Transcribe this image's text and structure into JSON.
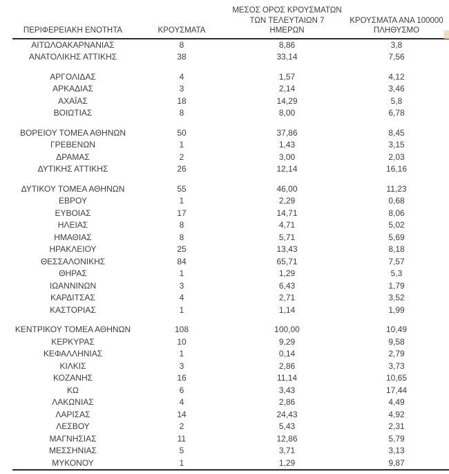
{
  "table": {
    "columns": [
      "ΠΕΡΙΦΕΡΕΙΑΚΗ ΕΝΟΤΗΤΑ",
      "ΚΡΟΥΣΜΑΤΑ",
      "ΜΕΣΟΣ ΟΡΟΣ ΚΡΟΥΣΜΑΤΩΝ\nΤΩΝ ΤΕΛΕΥΤΑΙΩΝ 7\nΗΜΕΡΩΝ",
      "ΚΡΟΥΣΜΑΤΑ ΑΝΑ 100000\nΠΛΗΘΥΣΜΟ"
    ]
  },
  "chart_data": {
    "type": "table",
    "columns": [
      "ΠΕΡΙΦΕΡΕΙΑΚΗ ΕΝΟΤΗΤΑ",
      "ΚΡΟΥΣΜΑΤΑ",
      "ΜΕΣΟΣ ΟΡΟΣ ΚΡΟΥΣΜΑΤΩΝ ΤΩΝ ΤΕΛΕΥΤΑΙΩΝ 7 ΗΜΕΡΩΝ",
      "ΚΡΟΥΣΜΑΤΑ ΑΝΑ 100000 ΠΛΗΘΥΣΜΟ"
    ],
    "groups": [
      [
        {
          "region": "ΑΙΤΩΛΟΑΚΑΡΝΑΝΙΑΣ",
          "cases": "8",
          "avg7": "8,86",
          "per100k": "3,8"
        },
        {
          "region": "ΑΝΑΤΟΛΙΚΗΣ ΑΤΤΙΚΗΣ",
          "cases": "38",
          "avg7": "33,14",
          "per100k": "7,56"
        }
      ],
      [
        {
          "region": "ΑΡΓΟΛΙΔΑΣ",
          "cases": "4",
          "avg7": "1,57",
          "per100k": "4,12"
        },
        {
          "region": "ΑΡΚΑΔΙΑΣ",
          "cases": "3",
          "avg7": "2,14",
          "per100k": "3,46"
        },
        {
          "region": "ΑΧΑΪΑΣ",
          "cases": "18",
          "avg7": "14,29",
          "per100k": "5,8"
        },
        {
          "region": "ΒΟΙΩΤΙΑΣ",
          "cases": "8",
          "avg7": "8,00",
          "per100k": "6,78"
        }
      ],
      [
        {
          "region": "ΒΟΡΕΙΟΥ ΤΟΜΕΑ ΑΘΗΝΩΝ",
          "cases": "50",
          "avg7": "37,86",
          "per100k": "8,45"
        },
        {
          "region": "ΓΡΕΒΕΝΩΝ",
          "cases": "1",
          "avg7": "1,43",
          "per100k": "3,15"
        },
        {
          "region": "ΔΡΑΜΑΣ",
          "cases": "2",
          "avg7": "3,00",
          "per100k": "2,03"
        },
        {
          "region": "ΔΥΤΙΚΗΣ ΑΤΤΙΚΗΣ",
          "cases": "26",
          "avg7": "12,14",
          "per100k": "16,16"
        }
      ],
      [
        {
          "region": "ΔΥΤΙΚΟΥ ΤΟΜΕΑ ΑΘΗΝΩΝ",
          "cases": "55",
          "avg7": "46,00",
          "per100k": "11,23"
        },
        {
          "region": "ΕΒΡΟΥ",
          "cases": "1",
          "avg7": "2,29",
          "per100k": "0,68"
        },
        {
          "region": "ΕΥΒΟΙΑΣ",
          "cases": "17",
          "avg7": "14,71",
          "per100k": "8,06"
        },
        {
          "region": "ΗΛΕΙΑΣ",
          "cases": "8",
          "avg7": "4,71",
          "per100k": "5,02"
        },
        {
          "region": "ΗΜΑΘΙΑΣ",
          "cases": "8",
          "avg7": "5,71",
          "per100k": "5,69"
        },
        {
          "region": "ΗΡΑΚΛΕΙΟΥ",
          "cases": "25",
          "avg7": "13,43",
          "per100k": "8,18"
        },
        {
          "region": "ΘΕΣΣΑΛΟΝΙΚΗΣ",
          "cases": "84",
          "avg7": "65,71",
          "per100k": "7,57"
        },
        {
          "region": "ΘΗΡΑΣ",
          "cases": "1",
          "avg7": "1,29",
          "per100k": "5,3"
        },
        {
          "region": "ΙΩΑΝΝΙΝΩΝ",
          "cases": "3",
          "avg7": "6,43",
          "per100k": "1,79"
        },
        {
          "region": "ΚΑΡΔΙΤΣΑΣ",
          "cases": "4",
          "avg7": "2,71",
          "per100k": "3,52"
        },
        {
          "region": "ΚΑΣΤΟΡΙΑΣ",
          "cases": "1",
          "avg7": "1,14",
          "per100k": "1,99"
        }
      ],
      [
        {
          "region": "ΚΕΝΤΡΙΚΟΥ ΤΟΜΕΑ ΑΘΗΝΩΝ",
          "cases": "108",
          "avg7": "100,00",
          "per100k": "10,49"
        },
        {
          "region": "ΚΕΡΚΥΡΑΣ",
          "cases": "10",
          "avg7": "9,29",
          "per100k": "9,58"
        },
        {
          "region": "ΚΕΦΑΛΛΗΝΙΑΣ",
          "cases": "1",
          "avg7": "0,14",
          "per100k": "2,79"
        },
        {
          "region": "ΚΙΛΚΙΣ",
          "cases": "3",
          "avg7": "2,86",
          "per100k": "3,73"
        },
        {
          "region": "ΚΟΖΑΝΗΣ",
          "cases": "16",
          "avg7": "11,14",
          "per100k": "10,65"
        },
        {
          "region": "ΚΩ",
          "cases": "6",
          "avg7": "3,43",
          "per100k": "17,44"
        },
        {
          "region": "ΛΑΚΩΝΙΑΣ",
          "cases": "4",
          "avg7": "2,86",
          "per100k": "4,49"
        },
        {
          "region": "ΛΑΡΙΣΑΣ",
          "cases": "14",
          "avg7": "24,43",
          "per100k": "4,92"
        },
        {
          "region": "ΛΕΣΒΟΥ",
          "cases": "2",
          "avg7": "5,43",
          "per100k": "2,31"
        },
        {
          "region": "ΜΑΓΝΗΣΙΑΣ",
          "cases": "11",
          "avg7": "12,86",
          "per100k": "5,79"
        },
        {
          "region": "ΜΕΣΣΗΝΙΑΣ",
          "cases": "5",
          "avg7": "3,71",
          "per100k": "3,13"
        },
        {
          "region": "ΜΥΚΟΝΟΥ",
          "cases": "1",
          "avg7": "1,29",
          "per100k": "9,87"
        }
      ]
    ]
  },
  "colors": {
    "text": "#3d3d3d",
    "rule": "#2b2b2b",
    "background": "#ffffff",
    "clipped_fragment": "#e9ddc2"
  }
}
